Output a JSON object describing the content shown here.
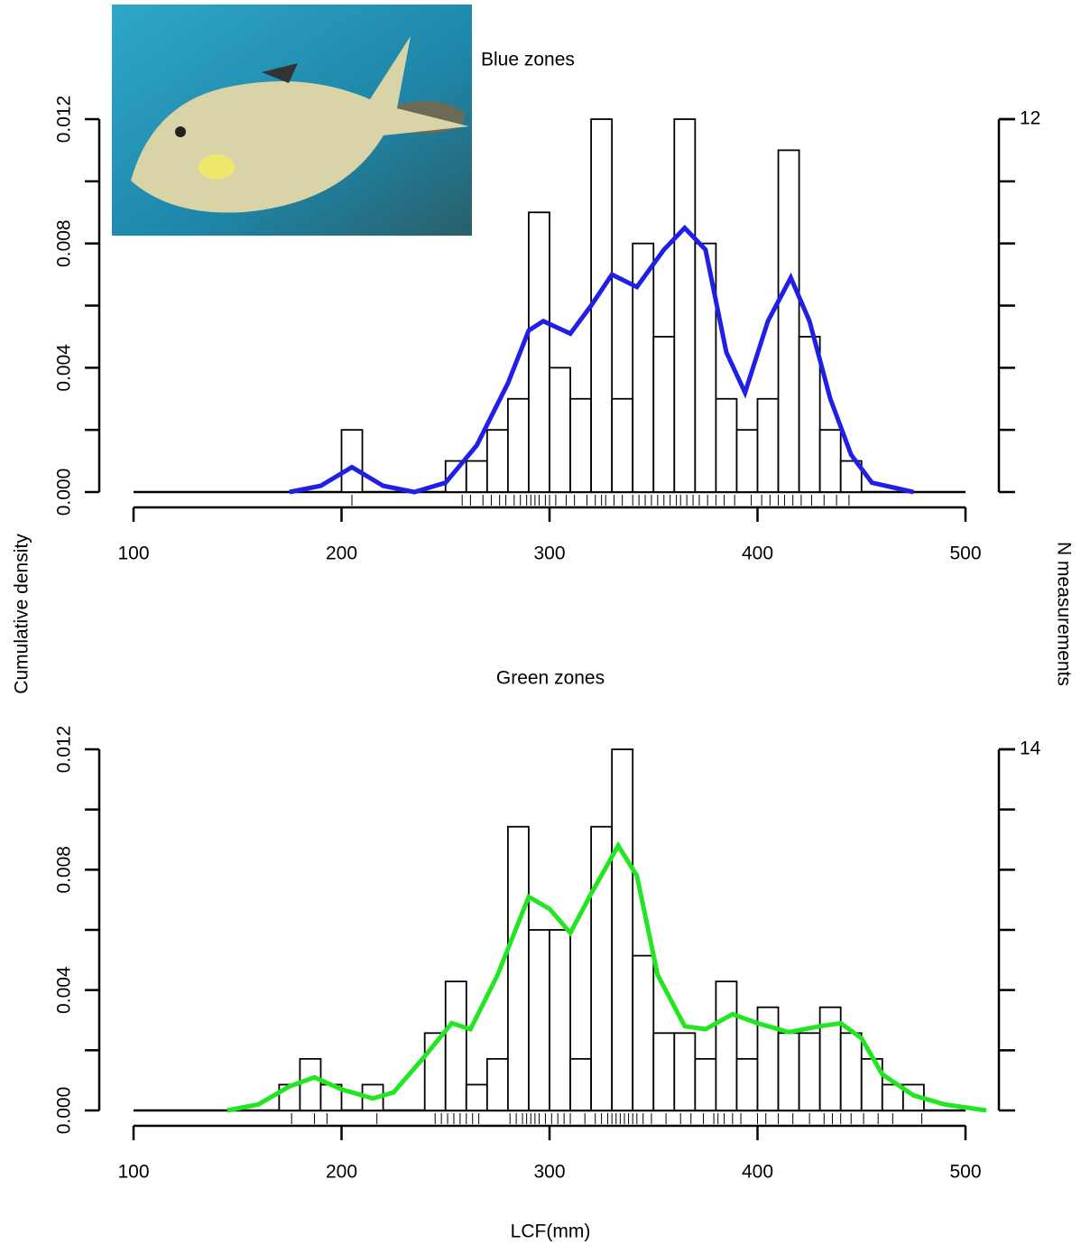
{
  "chart_data": [
    {
      "type": "histogram",
      "title": "Blue zones",
      "bins": [
        200,
        210,
        220,
        230,
        240,
        250,
        260,
        270,
        280,
        290,
        300,
        310,
        320,
        330,
        340,
        350,
        360,
        370,
        380,
        390,
        400,
        410,
        420,
        430,
        440,
        450
      ],
      "counts": [
        2,
        0,
        0,
        0,
        0,
        1,
        1,
        2,
        3,
        9,
        4,
        3,
        12,
        3,
        8,
        5,
        12,
        8,
        3,
        2,
        3,
        11,
        5,
        2,
        1
      ],
      "density": {
        "color": "#1f1fe6",
        "x": [
          175,
          190,
          205,
          220,
          235,
          250,
          265,
          280,
          290,
          297,
          310,
          320,
          330,
          342,
          355,
          365,
          375,
          385,
          394,
          405,
          416,
          425,
          435,
          445,
          455,
          475
        ],
        "y": [
          0,
          0.0002,
          0.0008,
          0.0002,
          0,
          0.0003,
          0.0015,
          0.0035,
          0.0052,
          0.0055,
          0.0051,
          0.006,
          0.007,
          0.0066,
          0.0078,
          0.0085,
          0.0078,
          0.0045,
          0.0032,
          0.0055,
          0.0069,
          0.0055,
          0.003,
          0.0012,
          0.0003,
          0
        ]
      },
      "rug": [
        205,
        258,
        262,
        268,
        272,
        276,
        279,
        283,
        286,
        289,
        291,
        293,
        295,
        298,
        300,
        303,
        308,
        312,
        318,
        322,
        325,
        327,
        331,
        335,
        340,
        343,
        346,
        349,
        352,
        355,
        358,
        361,
        363,
        366,
        369,
        372,
        376,
        380,
        384,
        389,
        397,
        402,
        406,
        410,
        413,
        417,
        421,
        426,
        432,
        438,
        444
      ],
      "xlim": [
        100,
        500
      ],
      "xticks": [
        100,
        200,
        300,
        400,
        500
      ],
      "ylim": [
        0,
        0.012
      ],
      "yticks": [
        {
          "value": 0,
          "label": "0.000"
        },
        {
          "value": 0.004,
          "label": "0.004"
        },
        {
          "value": 0.008,
          "label": "0.008"
        },
        {
          "value": 0.012,
          "label": "0.012"
        }
      ],
      "minor_yticks": [
        0.002,
        0.006,
        0.01
      ],
      "y2lim": [
        0,
        12
      ],
      "y2ticks": [
        12
      ]
    },
    {
      "type": "histogram",
      "title": "Green zones",
      "bins": [
        170,
        180,
        190,
        200,
        210,
        220,
        230,
        240,
        250,
        260,
        270,
        280,
        290,
        300,
        310,
        320,
        330,
        340,
        350,
        360,
        370,
        380,
        390,
        400,
        410,
        420,
        430,
        440,
        450,
        460,
        470,
        480
      ],
      "counts": [
        1,
        2,
        1,
        0,
        1,
        0,
        0,
        3,
        5,
        1,
        2,
        11,
        7,
        7,
        2,
        11,
        14,
        6,
        3,
        3,
        2,
        5,
        2,
        4,
        3,
        3,
        4,
        3,
        2,
        1,
        1
      ],
      "density": {
        "color": "#22e622",
        "x": [
          145,
          160,
          175,
          187,
          200,
          215,
          225,
          240,
          253,
          262,
          275,
          290,
          300,
          310,
          320,
          333,
          342,
          352,
          365,
          375,
          388,
          400,
          415,
          430,
          440,
          450,
          460,
          475,
          490,
          510
        ],
        "y": [
          0,
          0.0002,
          0.0008,
          0.0011,
          0.0007,
          0.0004,
          0.0006,
          0.0018,
          0.0029,
          0.0027,
          0.0045,
          0.0071,
          0.0067,
          0.0059,
          0.0072,
          0.0088,
          0.0078,
          0.0045,
          0.0028,
          0.0027,
          0.0032,
          0.0029,
          0.0026,
          0.0028,
          0.0029,
          0.0024,
          0.0012,
          0.0005,
          0.0002,
          0
        ]
      },
      "rug": [
        176,
        187,
        193,
        217,
        245,
        248,
        251,
        254,
        257,
        260,
        263,
        266,
        281,
        284,
        287,
        289,
        291,
        293,
        295,
        298,
        301,
        304,
        307,
        310,
        317,
        322,
        325,
        328,
        330,
        332,
        334,
        336,
        338,
        340,
        342,
        345,
        349,
        356,
        363,
        368,
        374,
        379,
        381,
        384,
        388,
        392,
        400,
        404,
        410,
        417,
        425,
        432,
        436,
        440,
        445,
        451,
        458,
        465,
        479
      ],
      "xlim": [
        100,
        500
      ],
      "xticks": [
        100,
        200,
        300,
        400,
        500
      ],
      "ylim": [
        0,
        0.012
      ],
      "yticks": [
        {
          "value": 0,
          "label": "0.000"
        },
        {
          "value": 0.004,
          "label": "0.004"
        },
        {
          "value": 0.008,
          "label": "0.008"
        },
        {
          "value": 0.012,
          "label": "0.012"
        }
      ],
      "minor_yticks": [
        0.002,
        0.006,
        0.01
      ],
      "y2lim": [
        0,
        14
      ],
      "y2ticks": [
        14
      ]
    }
  ],
  "ylabel": "Cumulative density",
  "y2label": "N measurements",
  "xlabel": "LCF(mm)"
}
